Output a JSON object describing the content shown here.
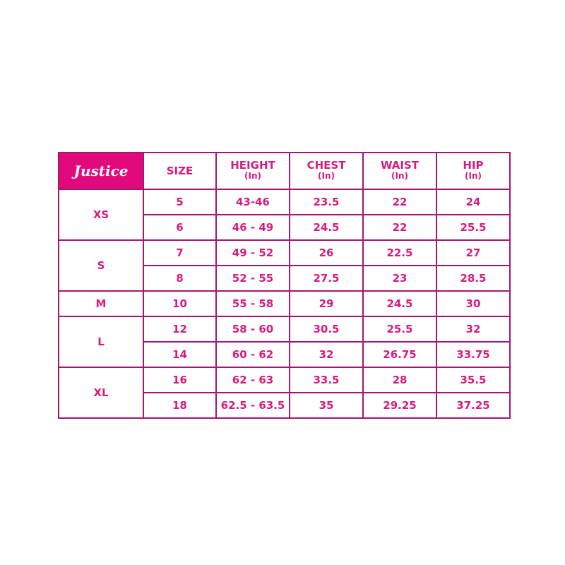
{
  "logo_text": "Justice",
  "colors": {
    "accent": "#e2097c",
    "text": "#d81b7c",
    "border": "#a3176f"
  },
  "headers": [
    {
      "label": "SIZE",
      "unit": ""
    },
    {
      "label": "HEIGHT",
      "unit": "(In)"
    },
    {
      "label": "CHEST",
      "unit": "(In)"
    },
    {
      "label": "WAIST",
      "unit": "(In)"
    },
    {
      "label": "HIP",
      "unit": "(In)"
    }
  ],
  "groups": [
    {
      "name": "XS",
      "rows": [
        [
          "5",
          "43-46",
          "23.5",
          "22",
          "24"
        ],
        [
          "6",
          "46 - 49",
          "24.5",
          "22",
          "25.5"
        ]
      ]
    },
    {
      "name": "S",
      "rows": [
        [
          "7",
          "49 - 52",
          "26",
          "22.5",
          "27"
        ],
        [
          "8",
          "52 - 55",
          "27.5",
          "23",
          "28.5"
        ]
      ]
    },
    {
      "name": "M",
      "rows": [
        [
          "10",
          "55 - 58",
          "29",
          "24.5",
          "30"
        ]
      ]
    },
    {
      "name": "L",
      "rows": [
        [
          "12",
          "58 - 60",
          "30.5",
          "25.5",
          "32"
        ],
        [
          "14",
          "60 - 62",
          "32",
          "26.75",
          "33.75"
        ]
      ]
    },
    {
      "name": "XL",
      "rows": [
        [
          "16",
          "62 - 63",
          "33.5",
          "28",
          "35.5"
        ],
        [
          "18",
          "62.5 - 63.5",
          "35",
          "29.25",
          "37.25"
        ]
      ]
    }
  ]
}
